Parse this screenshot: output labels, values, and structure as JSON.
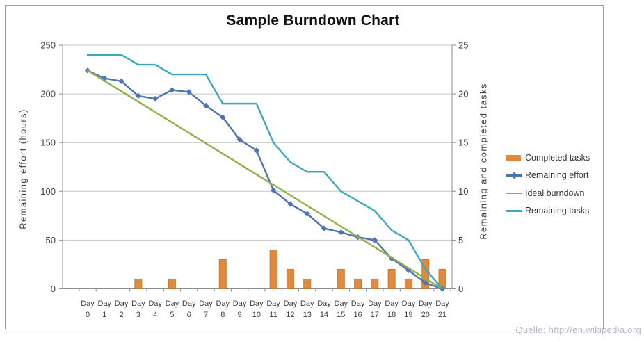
{
  "title": "Sample Burndown Chart",
  "source_note": "Quelle: http://en.wikipedia.org",
  "source_note_color": "#b5b6d0",
  "chart_data": {
    "type": "combo-bar-line",
    "title": "Sample Burndown Chart",
    "x_tick_word": "Day",
    "x_tick_numbers": [
      "0",
      "1",
      "2",
      "3",
      "4",
      "5",
      "6",
      "7",
      "8",
      "9",
      "10",
      "11",
      "12",
      "13",
      "14",
      "15",
      "16",
      "17",
      "18",
      "19",
      "20",
      "21"
    ],
    "left_axis": {
      "title": "Remaining effort (hours)",
      "min": 0,
      "max": 250,
      "step": 50,
      "ticks": [
        "250",
        "200",
        "150",
        "100",
        "50",
        "0"
      ],
      "tick_values": [
        250,
        200,
        150,
        100,
        50,
        0
      ]
    },
    "right_axis": {
      "title": "Remaining and completed tasks",
      "min": 0,
      "max": 25,
      "step": 5,
      "ticks": [
        "25",
        "20",
        "15",
        "10",
        "5",
        "0"
      ],
      "tick_values": [
        25,
        20,
        15,
        10,
        5,
        0
      ]
    },
    "grid": true,
    "legend_position": "right",
    "series": [
      {
        "name": "Completed tasks",
        "type": "bar",
        "axis": "right",
        "color": "#e18a3d",
        "border_color": "#cb7a2c",
        "values": [
          0,
          0,
          0,
          1,
          0,
          1,
          0,
          0,
          3,
          0,
          0,
          4,
          2,
          1,
          0,
          2,
          1,
          1,
          2,
          1,
          3,
          2
        ]
      },
      {
        "name": "Remaining effort",
        "type": "line",
        "axis": "left",
        "color": "#4d74b2",
        "marker": "diamond",
        "values": [
          224,
          216,
          213,
          198,
          195,
          204,
          202,
          188,
          176,
          153,
          142,
          101,
          87,
          77,
          62,
          58,
          53,
          50,
          31,
          19,
          6,
          0
        ]
      },
      {
        "name": "Ideal burndown",
        "type": "line",
        "axis": "left",
        "color": "#91b04a",
        "marker": "none",
        "values": [
          224,
          213.3,
          202.7,
          192,
          181.3,
          170.7,
          160,
          149.3,
          138.7,
          128,
          117.3,
          106.7,
          96,
          85.3,
          74.7,
          64,
          53.3,
          42.7,
          32,
          21.3,
          10.7,
          0
        ]
      },
      {
        "name": "Remaining tasks",
        "type": "line",
        "axis": "right",
        "color": "#3ea6c0",
        "marker": "none",
        "values": [
          24,
          24,
          24,
          23,
          23,
          22,
          22,
          22,
          19,
          19,
          19,
          15,
          13,
          12,
          12,
          10,
          9,
          8,
          6,
          5,
          2,
          0
        ]
      }
    ],
    "colors": {
      "gridline": "#c6c6c6",
      "axis_line": "#8f8f8f",
      "frame_border": "#9e9e9e",
      "tick_label": "#3f3f3f"
    }
  }
}
